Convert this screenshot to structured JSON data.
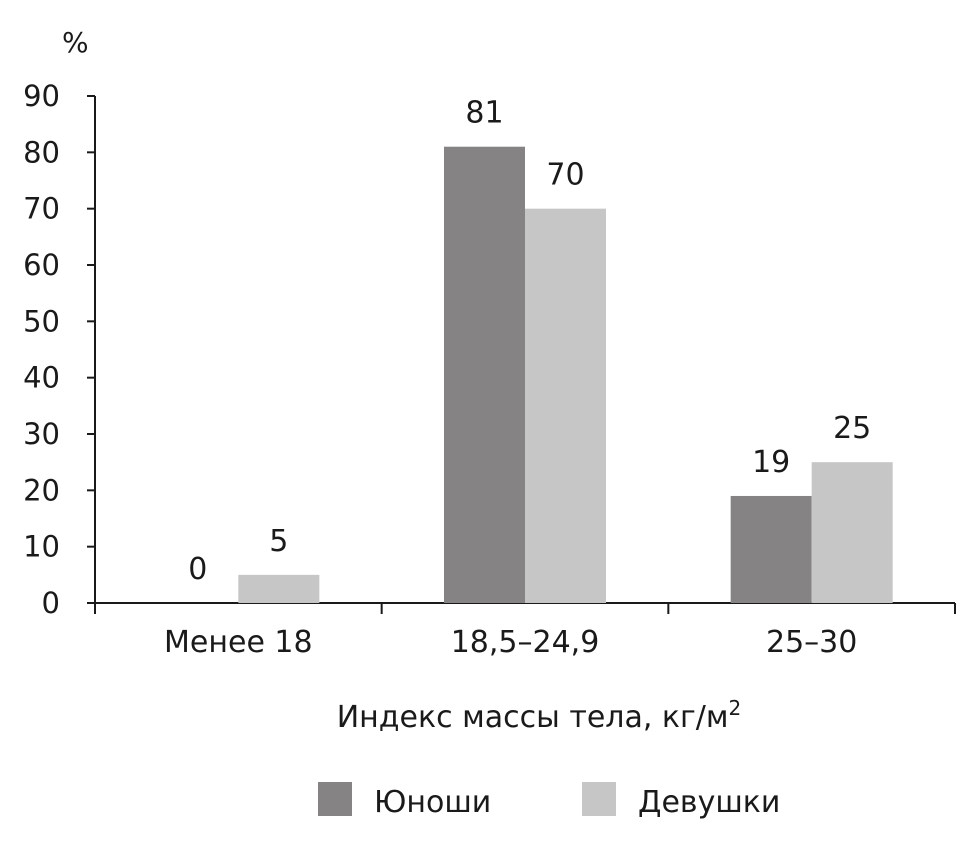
{
  "chart_data": {
    "type": "bar",
    "categories": [
      "Менее 18",
      "18,5–24,9",
      "25–30"
    ],
    "series": [
      {
        "name": "Юноши",
        "values": [
          0,
          81,
          19
        ],
        "color": "#858383"
      },
      {
        "name": "Девушки",
        "values": [
          5,
          70,
          25
        ],
        "color": "#c6c6c6"
      }
    ],
    "y_unit": "%",
    "xlabel": "Индекс массы тела, кг/м",
    "xlabel_superscript": "2",
    "ylim": [
      0,
      90
    ],
    "yticks": [
      0,
      10,
      20,
      30,
      40,
      50,
      60,
      70,
      80,
      90
    ],
    "grid": false,
    "legend_position": "bottom"
  }
}
